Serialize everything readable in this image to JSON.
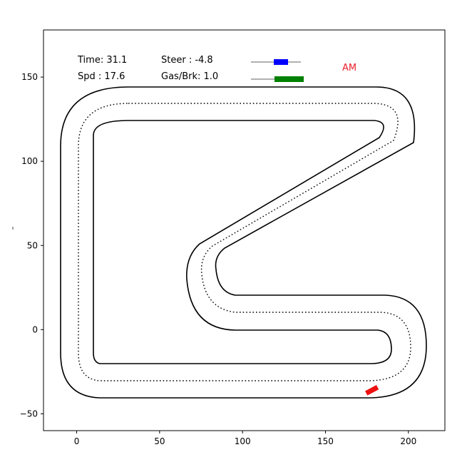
{
  "hud": {
    "time_text": "Time: 31.1",
    "speed_text": "Spd : 17.6",
    "steer_text": "Steer  : -4.8",
    "gas_brake_text": "Gas/Brk: 1.0",
    "mode_label": "AM",
    "steer_indicator": -4.8,
    "gas_brake_indicator": 1.0
  },
  "chart_data": {
    "type": "line",
    "xlim": [
      -20,
      222
    ],
    "ylim": [
      -60,
      178
    ],
    "x_ticks": [
      0,
      50,
      100,
      150,
      200
    ],
    "y_ticks": [
      -50,
      0,
      50,
      100,
      150
    ],
    "x_tick_labels": [
      "0",
      "50",
      "100",
      "150",
      "200"
    ],
    "y_tick_labels": [
      "−50",
      "0",
      "50",
      "100",
      "150"
    ],
    "grid": false,
    "car": {
      "x": 178,
      "y": -36,
      "heading_deg": 28
    }
  },
  "colors": {
    "car": "#ee1111",
    "steer_bar": "#0000ff",
    "gas_bar": "#008000",
    "mode_label": "#e8202a",
    "track": "#000000",
    "gauge_track": "#b0b0b0"
  }
}
